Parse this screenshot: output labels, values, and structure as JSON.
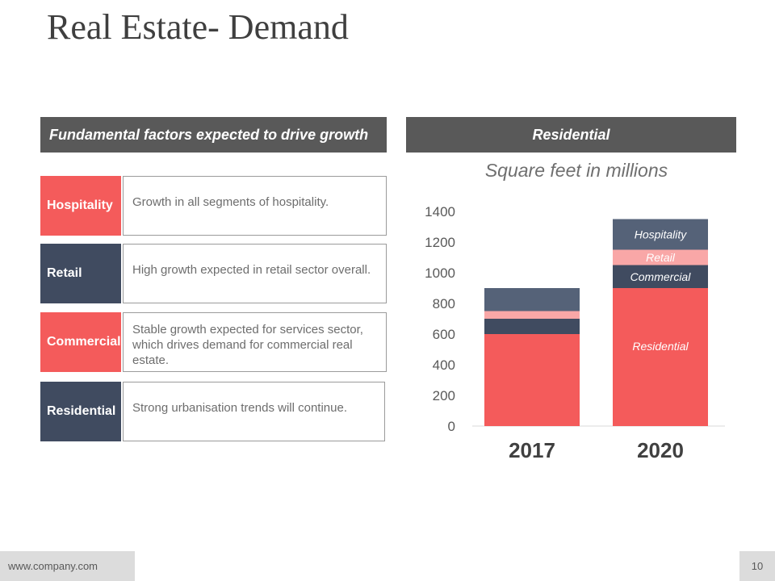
{
  "slide": {
    "title": "Real Estate- Demand",
    "footer_url": "www.company.com",
    "page_number": "10"
  },
  "left_panel": {
    "header": "Fundamental factors expected to drive growth",
    "factors": [
      {
        "label": "Hospitality",
        "description": "Growth in all segments of hospitality.",
        "color": "#f45b5b"
      },
      {
        "label": "Retail",
        "description": "High growth expected in retail sector overall.",
        "color": "#404b60"
      },
      {
        "label": "Commercial",
        "description": "Stable growth expected for services sector, which drives demand for commercial real estate.",
        "color": "#f45b5b"
      },
      {
        "label": "Residential",
        "description": "Strong urbanisation trends will continue.",
        "color": "#404b60"
      }
    ]
  },
  "right_panel": {
    "header": "Residential"
  },
  "chart_data": {
    "type": "bar",
    "stacked": true,
    "title": "Square feet in millions",
    "xlabel": "",
    "ylabel": "",
    "categories": [
      "2017",
      "2020"
    ],
    "ylim": [
      0,
      1400
    ],
    "yticks": [
      0,
      200,
      400,
      600,
      800,
      1000,
      1200,
      1400
    ],
    "grid": false,
    "series": [
      {
        "name": "Residential",
        "values": [
          600,
          900
        ],
        "color": "#f45b5b"
      },
      {
        "name": "Commercial",
        "values": [
          100,
          150
        ],
        "color": "#404b60"
      },
      {
        "name": "Retail",
        "values": [
          50,
          100
        ],
        "color": "#f9a7a7"
      },
      {
        "name": "Hospitality",
        "values": [
          150,
          200
        ],
        "color": "#556278"
      }
    ],
    "segment_labels": [
      {
        "series": "Hospitality",
        "category": "2020",
        "text": "Hospitality"
      },
      {
        "series": "Retail",
        "category": "2020",
        "text": "Retail"
      },
      {
        "series": "Commercial",
        "category": "2020",
        "text": "Commercial"
      },
      {
        "series": "Residential",
        "category": "2020",
        "text": "Residential"
      }
    ]
  }
}
